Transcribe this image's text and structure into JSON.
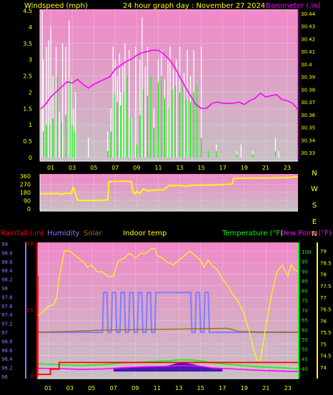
{
  "header": {
    "wind_title": "Windspeed (mph)",
    "center_title": "24 hour graph day : November 27 2024",
    "baro_title": "Barometer (.in)"
  },
  "legend": {
    "rainfall": "Rainfall (.in)",
    "humidity": "Humidity",
    "solar": "Solar",
    "indoor_temp": "Indoor temp",
    "temperature": "Temperature (°F)",
    "dew_point": "Dew Point (°F)"
  },
  "colors": {
    "bg": "#000000",
    "plot_pink": "#f088c8",
    "plot_grey": "#c8c0c4",
    "wind_gust": "#ffffff",
    "wind_avg": "#00ff00",
    "barometer": "#ff00ff",
    "direction": "#ffff00",
    "rainfall": "#ff0000",
    "humidity": "#8080ff",
    "solar": "#a07010",
    "indoor_temp": "#ffff00",
    "temperature": "#00ff00",
    "dew_point": "#ff00ff",
    "solar_fill": "#3000b0"
  },
  "chart_data": [
    {
      "type": "line",
      "name": "windspeed-barometer",
      "xlabel": "",
      "x_ticks": [
        "01",
        "03",
        "05",
        "07",
        "09",
        "11",
        "13",
        "15",
        "17",
        "19",
        "21",
        "23"
      ],
      "ylabel_left": "Windspeed (mph)",
      "ylim_left": [
        0,
        4.5
      ],
      "y_ticks_left": [
        "0",
        "0.5",
        "1",
        "1.5",
        "2",
        "2.5",
        "3",
        "3.5",
        "4",
        "4.5"
      ],
      "ylabel_right": "Barometer (.in)",
      "ylim_right": [
        30.33,
        30.44
      ],
      "y_ticks_right": [
        "30.33",
        "30.34",
        "30.35",
        "30.36",
        "30.37",
        "30.38",
        "30.39",
        "30.4",
        "30.41",
        "30.42",
        "30.43",
        "30.44"
      ],
      "grid": true,
      "series": [
        {
          "name": "Barometer (.in)",
          "hours": [
            0,
            0.5,
            1,
            1.5,
            2,
            2.5,
            3,
            3.5,
            4,
            4.5,
            5,
            5.5,
            6,
            6.5,
            7,
            7.5,
            8,
            8.5,
            9,
            9.5,
            10,
            10.5,
            11,
            11.5,
            12,
            12.5,
            13,
            13.5,
            14,
            14.5,
            15,
            15.5,
            16,
            16.5,
            17,
            17.5,
            18,
            18.5,
            19,
            19.5,
            20,
            20.5,
            21,
            21.5,
            22,
            22.5,
            23,
            23.5,
            24
          ],
          "values": [
            30.364,
            30.368,
            30.374,
            30.378,
            30.382,
            30.386,
            30.385,
            30.388,
            30.384,
            30.381,
            30.384,
            30.386,
            30.388,
            30.39,
            30.396,
            30.399,
            30.402,
            30.404,
            30.407,
            30.409,
            30.41,
            30.411,
            30.411,
            30.408,
            30.404,
            30.398,
            30.39,
            30.382,
            30.375,
            30.368,
            30.365,
            30.365,
            30.369,
            30.37,
            30.369,
            30.369,
            30.369,
            30.37,
            30.368,
            30.371,
            30.373,
            30.377,
            30.374,
            30.375,
            30.376,
            30.372,
            30.371,
            30.369,
            30.364
          ]
        },
        {
          "name": "Wind gust",
          "hours": [
            0.2,
            0.3,
            0.6,
            0.8,
            1.0,
            1.2,
            1.5,
            1.8,
            2.1,
            2.4,
            2.7,
            2.9,
            3.1,
            3.3,
            4.5,
            6.3,
            6.6,
            6.8,
            7.0,
            7.2,
            7.4,
            7.5,
            7.7,
            7.9,
            8.1,
            8.3,
            8.5,
            8.9,
            9.3,
            9.5,
            9.8,
            10.0,
            10.3,
            10.6,
            11.0,
            11.3,
            11.6,
            11.9,
            12.1,
            12.4,
            12.7,
            13.0,
            13.4,
            13.7,
            14.0,
            14.3,
            14.6,
            15.0,
            15.7,
            16.4,
            18.3,
            18.7,
            19.8,
            21.9,
            22.2
          ],
          "values": [
            4.5,
            3.0,
            3.4,
            3.6,
            4.0,
            2.5,
            3.4,
            1.4,
            3.5,
            3.4,
            4.2,
            2.4,
            1.5,
            2.0,
            0.6,
            0.8,
            1.5,
            3.4,
            3.0,
            2.5,
            3.2,
            2.0,
            2.8,
            3.5,
            2.0,
            3.3,
            1.2,
            3.4,
            3.0,
            4.3,
            2.8,
            3.4,
            2.5,
            1.5,
            3.0,
            3.3,
            2.4,
            3.0,
            3.4,
            2.7,
            3.0,
            3.4,
            2.6,
            3.3,
            2.5,
            3.3,
            2.0,
            3.4,
            0.2,
            0.4,
            0.2,
            0.4,
            0.2,
            0.6,
            0.2
          ]
        },
        {
          "name": "Wind average",
          "hours": [
            0.3,
            0.6,
            0.9,
            1.2,
            1.6,
            2.0,
            2.4,
            2.8,
            3.0,
            3.2,
            6.3,
            6.6,
            6.9,
            7.2,
            7.5,
            7.8,
            8.1,
            8.4,
            9.0,
            9.3,
            9.6,
            10.0,
            10.3,
            10.6,
            11.0,
            11.3,
            11.6,
            12.0,
            12.3,
            12.6,
            13.0,
            13.3,
            13.6,
            14.0,
            14.3,
            14.6,
            15.0,
            15.7,
            16.4,
            18.3,
            19.8,
            21.9
          ],
          "values": [
            0.8,
            1.0,
            1.0,
            1.2,
            2.5,
            1.1,
            1.3,
            2.4,
            1.0,
            0.8,
            0.2,
            0.8,
            2.0,
            1.7,
            1.6,
            2.0,
            2.5,
            1.2,
            0.4,
            1.3,
            2.1,
            1.9,
            2.5,
            0.9,
            2.3,
            2.5,
            1.8,
            1.5,
            2.1,
            2.2,
            2.0,
            2.2,
            1.8,
            1.7,
            2.0,
            2.2,
            0.6,
            0.2,
            0.2,
            0.1,
            0.1,
            0.2
          ]
        }
      ]
    },
    {
      "type": "line",
      "name": "wind-direction",
      "xlabel": "",
      "ylabel": "",
      "ylim": [
        0,
        360
      ],
      "y_ticks": [
        "0",
        "90",
        "180",
        "270",
        "360"
      ],
      "y_tick_values": [
        0,
        90,
        180,
        270,
        360
      ],
      "compass_labels": [
        "N",
        "W",
        "S",
        "E",
        "N"
      ],
      "grid": true,
      "series": [
        {
          "name": "Wind direction",
          "hours": [
            0,
            0.5,
            1,
            1.5,
            2,
            2.5,
            2.9,
            3.1,
            3.5,
            4,
            4.5,
            5,
            5.5,
            6,
            6.3,
            6.4,
            7,
            7.5,
            8,
            8.5,
            8.6,
            8.8,
            9,
            9.3,
            9.6,
            10,
            10.5,
            11,
            11.5,
            11.7,
            12,
            12.5,
            13,
            13.5,
            14,
            14.5,
            15,
            15.5,
            16,
            16.5,
            17,
            17.5,
            17.9,
            18,
            18.5,
            19,
            19.5,
            20,
            20.5,
            21,
            21.5,
            22,
            22.5,
            23,
            23.5,
            24
          ],
          "values": [
            165,
            168,
            167,
            170,
            160,
            172,
            165,
            240,
            95,
            92,
            93,
            92,
            95,
            98,
            100,
            300,
            302,
            301,
            303,
            300,
            210,
            160,
            195,
            170,
            220,
            198,
            205,
            208,
            210,
            230,
            257,
            255,
            258,
            250,
            257,
            258,
            262,
            260,
            262,
            265,
            268,
            270,
            272,
            335,
            337,
            336,
            338,
            340,
            339,
            337,
            340,
            342,
            341,
            343,
            348,
            355
          ]
        }
      ]
    },
    {
      "type": "line",
      "name": "temperature-humidity-rain",
      "xlabel": "",
      "ylabel_left": "Rainfall (.in)",
      "y_ticks_left_outer": [
        "99",
        "98.8",
        "98.6",
        "98.4",
        "98.2",
        "98",
        "97.8",
        "97.6",
        "97.4",
        "97.2",
        "97",
        "96.8",
        "96.6",
        "96.4",
        "96.2",
        "96"
      ],
      "y_ticks_left_outer_values": [
        99,
        98.8,
        98.6,
        98.4,
        98.2,
        98,
        97.8,
        97.6,
        97.4,
        97.2,
        97,
        96.8,
        96.6,
        96.4,
        96.2,
        96
      ],
      "ylim_left_outer": [
        96,
        99
      ],
      "rain_ticks": [
        "0.2",
        "0.1",
        "0"
      ],
      "rain_tick_values": [
        0.2,
        0.1,
        0
      ],
      "ylim_rain": [
        0,
        0.2
      ],
      "y_ticks_inner_right": [
        "100",
        "95",
        "90",
        "85",
        "80",
        "75",
        "70",
        "65",
        "60",
        "55",
        "50",
        "45",
        "40"
      ],
      "y_ticks_inner_right_values": [
        100,
        95,
        90,
        85,
        80,
        75,
        70,
        65,
        60,
        55,
        50,
        45,
        40
      ],
      "ylim_inner_right": [
        36,
        102
      ],
      "ylabel_right": "Temperature (°F)",
      "y_ticks_right": [
        "79",
        "78.5",
        "78",
        "77.5",
        "77",
        "76.5",
        "76",
        "75.5",
        "75",
        "74.5",
        "74"
      ],
      "y_ticks_right_values": [
        79,
        78.5,
        78,
        77.5,
        77,
        76.5,
        76,
        75.5,
        75,
        74.5,
        74
      ],
      "ylim_right": [
        73.5,
        79.2
      ],
      "grid": true,
      "series": [
        {
          "name": "Indoor temp",
          "hours": [
            0,
            0.3,
            0.6,
            1,
            1.5,
            1.8,
            2,
            2.3,
            2.5,
            3,
            3.5,
            3.8,
            4.3,
            4.6,
            5,
            5.5,
            6,
            6.5,
            7,
            7.3,
            7.5,
            8,
            8.5,
            9,
            9.5,
            10,
            10.5,
            10.8,
            11,
            11.5,
            12,
            12.5,
            13,
            13.5,
            14,
            14.5,
            15,
            15.3,
            15.7,
            16,
            16.5,
            17,
            17.5,
            18,
            18.5,
            19,
            19.3,
            19.6,
            19.9,
            20.2,
            20.5,
            21,
            21.5,
            22,
            22.5,
            23,
            23.3,
            23.6,
            24
          ],
          "values": [
            76.2,
            76.3,
            76.4,
            76.6,
            76.7,
            77.0,
            77.8,
            78.5,
            79.0,
            79.0,
            78.8,
            78.7,
            78.5,
            78.3,
            78.4,
            78.1,
            78.1,
            77.9,
            77.9,
            78.4,
            78.6,
            78.7,
            78.9,
            78.7,
            78.9,
            78.9,
            79.1,
            79.1,
            78.8,
            78.7,
            78.5,
            78.4,
            78.6,
            78.8,
            79.0,
            78.8,
            78.6,
            78.3,
            78.6,
            78.4,
            78.2,
            77.8,
            77.5,
            77.1,
            76.8,
            76.3,
            75.8,
            75.3,
            74.7,
            74.3,
            74.3,
            75.8,
            77.1,
            78.1,
            78.4,
            77.9,
            78.4,
            78.2,
            78.1
          ]
        },
        {
          "name": "Humidity",
          "hours": [
            0,
            6.0,
            6.1,
            6.4,
            6.5,
            6.8,
            6.9,
            7.2,
            7.3,
            7.6,
            7.7,
            8.0,
            8.1,
            8.4,
            8.5,
            8.8,
            8.9,
            9.2,
            9.3,
            9.6,
            9.7,
            10.0,
            10.1,
            10.4,
            10.5,
            10.8,
            10.9,
            14.1,
            14.2,
            14.5,
            14.6,
            14.9,
            15.0,
            15.3,
            15.4,
            15.7,
            15.8,
            24
          ],
          "values": [
            97.0,
            97.0,
            97.9,
            97.9,
            97.0,
            97.0,
            97.9,
            97.9,
            97.0,
            97.0,
            97.9,
            97.9,
            97.0,
            97.0,
            97.9,
            97.9,
            97.0,
            97.0,
            97.9,
            97.9,
            97.0,
            97.0,
            97.9,
            97.9,
            97.0,
            97.0,
            97.9,
            97.9,
            97.0,
            97.0,
            97.9,
            97.9,
            97.0,
            97.0,
            97.9,
            97.9,
            97.0,
            97.0
          ]
        },
        {
          "name": "Solar",
          "hours": [
            0,
            3,
            6,
            9,
            12,
            15,
            17.5,
            18.5,
            21,
            24
          ],
          "values": [
            97.0,
            97.02,
            97.05,
            97.06,
            97.07,
            97.08,
            97.09,
            97.02,
            97.0,
            97.0
          ]
        },
        {
          "name": "Temperature (°F)",
          "hours": [
            0,
            2,
            4,
            6,
            8,
            10,
            12,
            13,
            14,
            15,
            16,
            18,
            20,
            22,
            24
          ],
          "values": [
            42.5,
            42.0,
            41.5,
            42.0,
            43.0,
            43.5,
            44.0,
            44.5,
            44.5,
            44.0,
            43.0,
            42.0,
            41.0,
            40.5,
            40.0
          ]
        },
        {
          "name": "Dew Point (°F)",
          "hours": [
            0,
            2,
            4,
            6,
            8,
            10,
            12,
            13,
            14,
            15,
            16,
            18,
            20,
            22,
            24
          ],
          "values": [
            40.2,
            40.0,
            39.6,
            39.8,
            40.5,
            41.0,
            41.2,
            41.5,
            41.5,
            41.2,
            40.4,
            39.8,
            39.2,
            38.8,
            38.5
          ]
        },
        {
          "name": "Rainfall (.in)",
          "hours": [
            0,
            0.05,
            0.06,
            1.2,
            1.21,
            2.0,
            2.01,
            24
          ],
          "values": [
            0,
            0.15,
            0.002,
            0.002,
            0.01,
            0.01,
            0.02,
            0.02
          ]
        },
        {
          "name": "Solar fill",
          "hours": [
            7,
            8,
            9,
            10,
            11,
            12,
            12.5,
            13,
            13.5,
            14,
            14.5,
            15,
            16,
            17
          ],
          "values": [
            0,
            0.3,
            0.6,
            0.8,
            1.1,
            1.6,
            2.3,
            3.0,
            3.0,
            2.6,
            2.0,
            1.3,
            0.5,
            0
          ]
        }
      ]
    }
  ]
}
